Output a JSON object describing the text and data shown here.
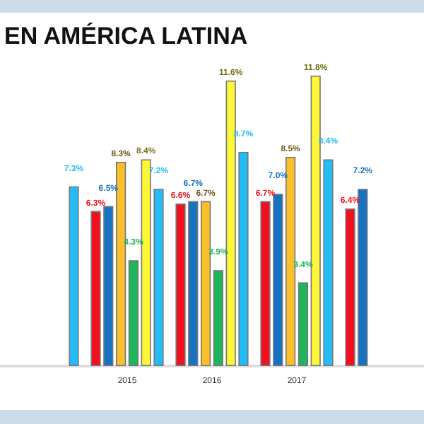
{
  "chart_data": {
    "type": "bar",
    "title": "EN AMÉRICA LATINA",
    "categories": [
      null,
      "2015",
      "2016",
      "2017",
      null
    ],
    "series": [
      {
        "color": "#f2101e",
        "values": [
          null,
          6.3,
          6.6,
          6.7,
          6.4
        ],
        "value_labels": [
          null,
          "6.3%",
          "6.6%",
          "6.7%",
          "6.4%"
        ]
      },
      {
        "color": "#1872c2",
        "values": [
          null,
          6.5,
          6.7,
          7.0,
          7.2
        ],
        "value_labels": [
          null,
          "6.5%",
          "6.7%",
          "7.0%",
          "7.2%"
        ]
      },
      {
        "color": "#fcbf2c",
        "values": [
          null,
          8.3,
          6.7,
          8.5,
          null
        ],
        "value_labels": [
          null,
          "8.3%",
          "6.7%",
          "8.5%",
          null
        ]
      },
      {
        "color": "#1eb65a",
        "values": [
          null,
          4.3,
          3.9,
          3.4,
          null
        ],
        "value_labels": [
          null,
          "4.3%",
          "3.9%",
          "3.4%",
          null
        ]
      },
      {
        "color": "#fdf737",
        "values": [
          null,
          8.4,
          11.6,
          11.8,
          null
        ],
        "value_labels": [
          null,
          "8.4%",
          "11.6%",
          "11.8%",
          null
        ]
      },
      {
        "color": "#22bcf6",
        "values": [
          7.3,
          7.2,
          8.7,
          8.4,
          null
        ],
        "value_labels": [
          "7.3%",
          "7.2%",
          "8.7%",
          "8.4%",
          null
        ]
      }
    ]
  }
}
